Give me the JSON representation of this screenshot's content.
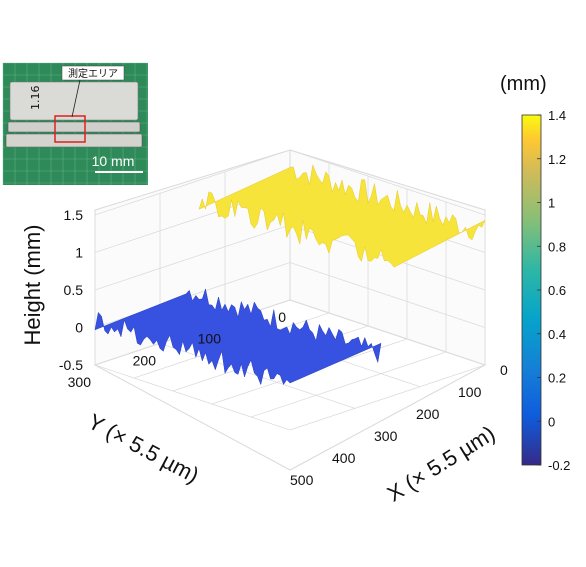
{
  "chart_data": {
    "type": "surface",
    "zlabel": "Height (mm)",
    "xlabel": "X (× 5.5 µm)",
    "ylabel": "Y (× 5.5 µm)",
    "zticks": [
      "1.5",
      "1",
      "0.5",
      "0",
      "-0.5"
    ],
    "xticks": [
      "0",
      "100",
      "200",
      "300",
      "400",
      "500"
    ],
    "yticks": [
      "0",
      "100",
      "200",
      "300"
    ],
    "zlim": [
      -0.5,
      1.5
    ],
    "xlim": [
      0,
      500
    ],
    "ylim": [
      0,
      300
    ],
    "grid": true,
    "series": [
      {
        "level": 1.2,
        "x_range": [
          0,
          500
        ],
        "y_range": [
          0,
          140
        ]
      },
      {
        "level": 0.05,
        "x_range": [
          0,
          500
        ],
        "y_range": [
          160,
          300
        ]
      }
    ],
    "colorbar": {
      "unit": "(mm)",
      "range": [
        -0.2,
        1.4
      ],
      "ticks": [
        "1.4",
        "1.2",
        "1",
        "0.8",
        "0.6",
        "0.4",
        "0.2",
        "0",
        "-0.2"
      ],
      "colormap": "parula"
    }
  },
  "inset": {
    "label": "測定エリア",
    "scale_bar": "10 mm",
    "gauge_text": "1.16"
  },
  "colors": {
    "high": "#f6e43a",
    "low": "#3751e0",
    "grid": "#d9d9d9",
    "axis": "#333333",
    "mat": "#2f8a5a"
  }
}
